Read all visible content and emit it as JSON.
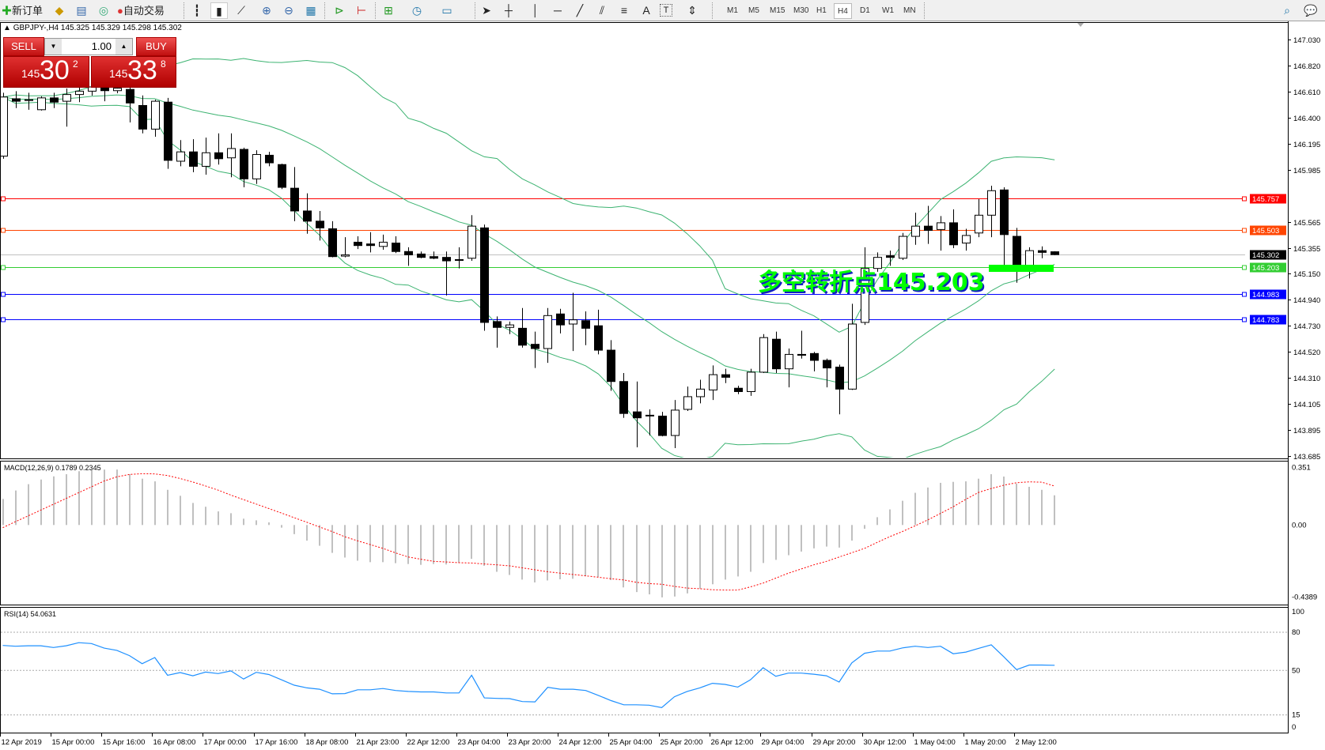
{
  "toolbar": {
    "new_order": "新订单",
    "auto_trading": "自动交易",
    "text_tool": "A",
    "label_tool": "T",
    "periods": [
      "M1",
      "M5",
      "M15",
      "M30",
      "H1",
      "H4",
      "D1",
      "W1",
      "MN"
    ],
    "active_period": "H4"
  },
  "chart": {
    "symbol_line": "GBPJPY-,H4  145.325 145.329 145.298 145.302"
  },
  "trade_panel": {
    "sell": "SELL",
    "buy": "BUY",
    "lot": "1.00",
    "bid": {
      "small": "145",
      "big": "30",
      "sup": "2"
    },
    "ask": {
      "small": "145",
      "big": "33",
      "sup": "8"
    },
    "color": "#d01818"
  },
  "annotation": {
    "text": "多空转折点145.203",
    "color": "#00ff00"
  },
  "price_axis": [
    "147.030",
    "146.820",
    "146.610",
    "146.400",
    "146.195",
    "145.985",
    "145.565",
    "145.355",
    "145.150",
    "144.940",
    "144.730",
    "144.520",
    "144.310",
    "144.105",
    "143.895",
    "143.685"
  ],
  "levels": [
    {
      "price": "145.757",
      "color": "#ff0000"
    },
    {
      "price": "145.503",
      "color": "#ff4500"
    },
    {
      "price": "145.302",
      "color": "#000000",
      "line": "#c0c0c0"
    },
    {
      "price": "145.203",
      "color": "#32cd32"
    },
    {
      "price": "144.983",
      "color": "#0000ff"
    },
    {
      "price": "144.783",
      "color": "#0000ff"
    }
  ],
  "macd": {
    "label": "MACD(12,26,9) 0.1789 0.2345",
    "axis": [
      "0.351",
      "0.00",
      "-0.4389"
    ]
  },
  "rsi": {
    "label": "RSI(14) 54.0631",
    "axis": [
      "100",
      "80",
      "50",
      "15",
      "0"
    ]
  },
  "time_axis": [
    "12 Apr 2019",
    "15 Apr 00:00",
    "15 Apr 16:00",
    "16 Apr 08:00",
    "17 Apr 00:00",
    "17 Apr 16:00",
    "18 Apr 08:00",
    "21 Apr 23:00",
    "22 Apr 12:00",
    "23 Apr 04:00",
    "23 Apr 20:00",
    "24 Apr 12:00",
    "25 Apr 04:00",
    "25 Apr 20:00",
    "26 Apr 12:00",
    "29 Apr 04:00",
    "29 Apr 20:00",
    "30 Apr 12:00",
    "1 May 04:00",
    "1 May 20:00",
    "2 May 12:00"
  ],
  "chart_data": {
    "type": "candlestick",
    "symbol": "GBPJPY-",
    "timeframe": "H4",
    "ylim": [
      143.685,
      147.03
    ],
    "ohlc": [
      [
        146.094,
        146.603,
        146.073,
        146.569
      ],
      [
        146.555,
        146.616,
        146.48,
        146.535
      ],
      [
        146.541,
        146.603,
        146.467,
        146.548
      ],
      [
        146.467,
        146.575,
        146.46,
        146.562
      ],
      [
        146.562,
        146.603,
        146.48,
        146.528
      ],
      [
        146.535,
        146.637,
        146.331,
        146.589
      ],
      [
        146.589,
        146.67,
        146.528,
        146.616
      ],
      [
        146.616,
        146.7,
        146.58,
        146.65
      ],
      [
        146.65,
        146.69,
        146.535,
        146.62
      ],
      [
        146.62,
        146.68,
        146.6,
        146.64
      ],
      [
        146.63,
        146.67,
        146.365,
        146.521
      ],
      [
        146.501,
        146.582,
        146.277,
        146.311
      ],
      [
        146.311,
        146.548,
        146.25,
        146.535
      ],
      [
        146.528,
        146.562,
        145.992,
        146.06
      ],
      [
        146.053,
        146.223,
        146.012,
        146.128
      ],
      [
        146.128,
        146.23,
        145.965,
        146.012
      ],
      [
        146.012,
        146.243,
        145.945,
        146.121
      ],
      [
        146.121,
        146.277,
        146.026,
        146.073
      ],
      [
        146.08,
        146.277,
        145.924,
        146.155
      ],
      [
        146.148,
        146.162,
        145.843,
        145.911
      ],
      [
        145.911,
        146.141,
        145.87,
        146.107
      ],
      [
        146.101,
        146.128,
        146.012,
        146.04
      ],
      [
        146.026,
        146.033,
        145.829,
        145.843
      ],
      [
        145.836,
        146.006,
        145.571,
        145.653
      ],
      [
        145.653,
        145.795,
        145.47,
        145.571
      ],
      [
        145.571,
        145.653,
        145.415,
        145.517
      ],
      [
        145.51,
        145.571,
        145.28,
        145.286
      ],
      [
        145.29,
        145.442,
        145.28,
        145.3
      ],
      [
        145.402,
        145.449,
        145.347,
        145.375
      ],
      [
        145.388,
        145.483,
        145.32,
        145.375
      ],
      [
        145.368,
        145.463,
        145.341,
        145.402
      ],
      [
        145.395,
        145.449,
        145.314,
        145.327
      ],
      [
        145.327,
        145.361,
        145.212,
        145.3
      ],
      [
        145.307,
        145.327,
        145.273,
        145.28
      ],
      [
        145.286,
        145.327,
        145.266,
        145.273
      ],
      [
        145.28,
        145.327,
        144.974,
        145.252
      ],
      [
        145.259,
        145.361,
        145.191,
        145.262
      ],
      [
        145.273,
        145.619,
        145.252,
        145.531
      ],
      [
        145.517,
        145.544,
        144.69,
        144.757
      ],
      [
        144.764,
        144.805,
        144.554,
        144.717
      ],
      [
        144.717,
        144.764,
        144.663,
        144.737
      ],
      [
        144.71,
        144.873,
        144.554,
        144.574
      ],
      [
        144.581,
        144.683,
        144.391,
        144.547
      ],
      [
        144.547,
        144.873,
        144.432,
        144.812
      ],
      [
        144.825,
        144.866,
        144.669,
        144.737
      ],
      [
        144.744,
        144.995,
        144.527,
        144.778
      ],
      [
        144.771,
        144.846,
        144.574,
        144.71
      ],
      [
        144.73,
        144.859,
        144.5,
        144.534
      ],
      [
        144.534,
        144.615,
        144.207,
        144.282
      ],
      [
        144.282,
        144.35,
        143.99,
        144.025
      ],
      [
        144.038,
        144.282,
        143.753,
        143.99
      ],
      [
        144.011,
        144.058,
        143.848,
        144.011
      ],
      [
        144.004,
        144.038,
        143.841,
        143.848
      ],
      [
        143.848,
        144.133,
        143.747,
        144.052
      ],
      [
        144.058,
        144.241,
        144.045,
        144.16
      ],
      [
        144.16,
        144.296,
        144.106,
        144.221
      ],
      [
        144.214,
        144.411,
        144.133,
        144.337
      ],
      [
        144.337,
        144.384,
        144.269,
        144.316
      ],
      [
        144.228,
        144.248,
        144.18,
        144.201
      ],
      [
        144.201,
        144.384,
        144.167,
        144.357
      ],
      [
        144.357,
        144.663,
        144.35,
        144.635
      ],
      [
        144.622,
        144.683,
        144.35,
        144.384
      ],
      [
        144.384,
        144.547,
        144.235,
        144.5
      ],
      [
        144.5,
        144.69,
        144.466,
        144.493
      ],
      [
        144.507,
        144.52,
        144.364,
        144.452
      ],
      [
        144.452,
        144.466,
        144.235,
        144.391
      ],
      [
        144.398,
        144.418,
        144.018,
        144.221
      ],
      [
        144.221,
        144.907,
        144.214,
        144.744
      ],
      [
        144.757,
        145.361,
        144.737,
        145.191
      ],
      [
        145.191,
        145.32,
        145.164,
        145.28
      ],
      [
        145.293,
        145.334,
        145.212,
        145.28
      ],
      [
        145.273,
        145.476,
        145.259,
        145.449
      ],
      [
        145.449,
        145.639,
        145.381,
        145.531
      ],
      [
        145.531,
        145.694,
        145.388,
        145.497
      ],
      [
        145.504,
        145.612,
        145.334,
        145.558
      ],
      [
        145.558,
        145.666,
        145.354,
        145.381
      ],
      [
        145.395,
        145.51,
        145.334,
        145.456
      ],
      [
        145.476,
        145.748,
        145.442,
        145.619
      ],
      [
        145.619,
        145.856,
        145.442,
        145.816
      ],
      [
        145.822,
        145.843,
        145.198,
        145.463
      ],
      [
        145.449,
        145.517,
        145.076,
        145.178
      ],
      [
        145.191,
        145.361,
        145.11,
        145.334
      ],
      [
        145.334,
        145.368,
        145.273,
        145.32
      ],
      [
        145.325,
        145.329,
        145.298,
        145.302
      ]
    ],
    "bollinger": {
      "period": 20,
      "deviation": 2
    },
    "macd_main": [
      0.157,
      0.208,
      0.246,
      0.274,
      0.293,
      0.306,
      0.324,
      0.33,
      0.334,
      0.334,
      0.306,
      0.279,
      0.263,
      0.212,
      0.176,
      0.133,
      0.11,
      0.082,
      0.071,
      0.038,
      0.028,
      0.016,
      -0.016,
      -0.055,
      -0.094,
      -0.125,
      -0.168,
      -0.196,
      -0.215,
      -0.224,
      -0.224,
      -0.23,
      -0.235,
      -0.24,
      -0.235,
      -0.238,
      -0.227,
      -0.204,
      -0.246,
      -0.282,
      -0.301,
      -0.329,
      -0.346,
      -0.334,
      -0.327,
      -0.324,
      -0.309,
      -0.313,
      -0.332,
      -0.376,
      -0.404,
      -0.418,
      -0.436,
      -0.431,
      -0.412,
      -0.384,
      -0.357,
      -0.329,
      -0.31,
      -0.282,
      -0.229,
      -0.21,
      -0.182,
      -0.16,
      -0.141,
      -0.13,
      -0.136,
      -0.094,
      -0.023,
      0.047,
      0.094,
      0.146,
      0.194,
      0.226,
      0.254,
      0.26,
      0.263,
      0.279,
      0.306,
      0.292,
      0.249,
      0.23,
      0.212,
      0.1789
    ],
    "macd_signal": [
      -0.016,
      0.02,
      0.055,
      0.09,
      0.125,
      0.16,
      0.195,
      0.23,
      0.265,
      0.29,
      0.305,
      0.309,
      0.308,
      0.298,
      0.28,
      0.259,
      0.235,
      0.21,
      0.18,
      0.153,
      0.126,
      0.099,
      0.072,
      0.044,
      0.016,
      -0.012,
      -0.04,
      -0.071,
      -0.095,
      -0.118,
      -0.141,
      -0.168,
      -0.193,
      -0.206,
      -0.219,
      -0.223,
      -0.227,
      -0.229,
      -0.235,
      -0.24,
      -0.246,
      -0.258,
      -0.27,
      -0.282,
      -0.29,
      -0.298,
      -0.306,
      -0.315,
      -0.324,
      -0.331,
      -0.345,
      -0.353,
      -0.357,
      -0.37,
      -0.38,
      -0.384,
      -0.39,
      -0.392,
      -0.392,
      -0.373,
      -0.35,
      -0.32,
      -0.29,
      -0.265,
      -0.24,
      -0.219,
      -0.193,
      -0.167,
      -0.141,
      -0.105,
      -0.07,
      -0.039,
      -0.005,
      0.031,
      0.07,
      0.11,
      0.155,
      0.196,
      0.22,
      0.24,
      0.255,
      0.26,
      0.258,
      0.2345
    ],
    "macd_ylim": [
      -0.4389,
      0.351
    ],
    "rsi": [
      69.6,
      69.0,
      69.4,
      69.4,
      68.0,
      69.4,
      71.8,
      71.1,
      67.5,
      65.8,
      61.6,
      55.3,
      60.1,
      46.2,
      48.3,
      45.8,
      48.7,
      47.5,
      49.6,
      43.2,
      48.5,
      46.8,
      42.6,
      38.4,
      36.3,
      35.2,
      31.6,
      31.8,
      34.8,
      34.8,
      35.8,
      34.2,
      33.5,
      33.1,
      33.1,
      32.3,
      32.3,
      46.2,
      28.4,
      28.0,
      27.8,
      25.5,
      25.3,
      36.7,
      35.2,
      35.2,
      34.2,
      30.4,
      26.3,
      23.0,
      23.0,
      22.7,
      20.8,
      29.3,
      33.5,
      36.3,
      39.9,
      39.0,
      36.9,
      42.6,
      52.1,
      45.4,
      47.9,
      47.9,
      47.0,
      45.8,
      40.9,
      55.9,
      63.5,
      65.2,
      65.2,
      67.7,
      69.0,
      68.0,
      69.0,
      63.1,
      64.4,
      67.3,
      70.1,
      60.6,
      50.6,
      54.2,
      54.2,
      54.06
    ],
    "rsi_levels": [
      80,
      50,
      15
    ],
    "colors": {
      "bands": "#3cb371",
      "macd_bars": "#c0c0c0",
      "macd_signal": "#ff0000",
      "rsi": "#1e90ff"
    }
  }
}
